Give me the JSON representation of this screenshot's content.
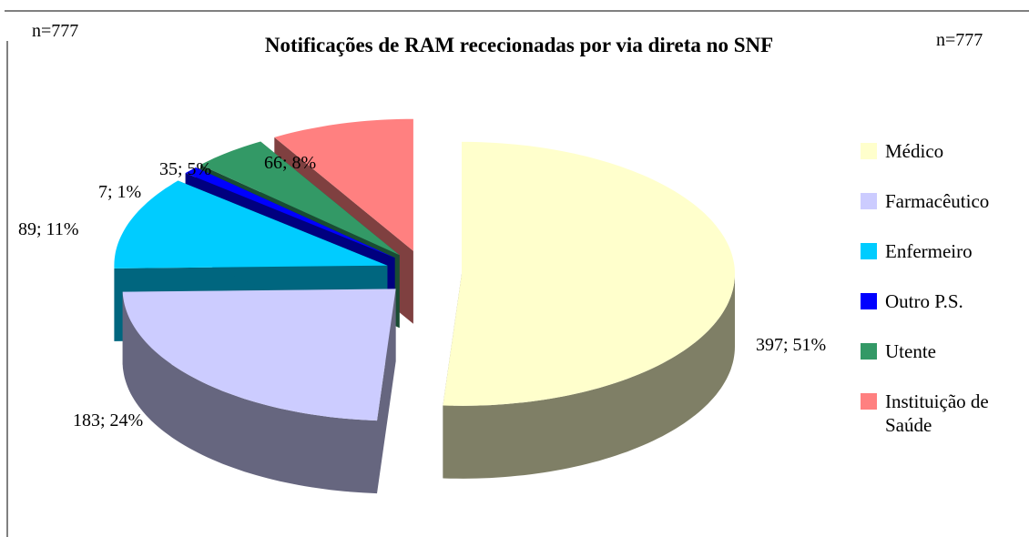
{
  "chart_data": {
    "type": "pie3d",
    "title": "Notificações de RAM rececionadas por via direta no SNF",
    "annotations": [
      "n=777",
      "n=777"
    ],
    "categories": [
      "Médico",
      "Farmacêutico",
      "Enfermeiro",
      "Outro P.S.",
      "Utente",
      "Instituição de Saúde"
    ],
    "values": [
      397,
      183,
      89,
      7,
      35,
      66
    ],
    "value_labels": [
      "397; 51%",
      "183; 24%",
      "89; 11%",
      "7; 1%",
      "35; 5%",
      "66; 8%"
    ],
    "colors": [
      "#ffffcc",
      "#ccccff",
      "#00ccff",
      "#0000ff",
      "#339966",
      "#ff8080"
    ],
    "legend": "right"
  }
}
